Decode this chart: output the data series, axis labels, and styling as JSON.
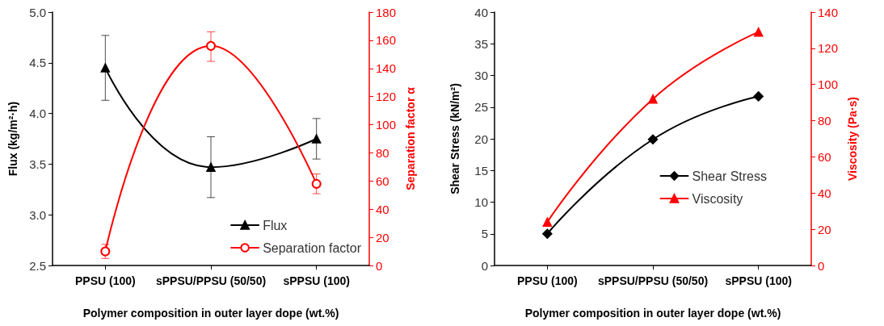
{
  "chart_data": [
    {
      "type": "line",
      "xlabel": "Polymer composition in outer layer dope (wt.%)",
      "ylabel": "Flux (kg/m²·h)",
      "y2label": "Separation factor α",
      "categories": [
        "PPSU (100)",
        "sPPSU/PPSU (50/50)",
        "sPPSU (100)"
      ],
      "series": [
        {
          "name": "Flux",
          "color": "#000000",
          "values": [
            4.45,
            3.47,
            3.75
          ],
          "errors": [
            [
              4.13,
              4.77
            ],
            [
              3.17,
              3.77
            ],
            [
              3.55,
              3.95
            ]
          ],
          "marker": "triangle"
        },
        {
          "name": "Separation factor",
          "color": "#ff0000",
          "axis": "y2",
          "values": [
            10,
            156,
            58
          ],
          "errors": [
            [
              5,
              15
            ],
            [
              145,
              166
            ],
            [
              51,
              65
            ]
          ],
          "marker": "circle"
        }
      ],
      "ylim": [
        2.5,
        5.0
      ],
      "yticks": [
        {
          "value": 2.5,
          "label": "2.5"
        },
        {
          "value": 3,
          "label": "3.0"
        },
        {
          "value": 3.5,
          "label": "3.5"
        },
        {
          "value": 4,
          "label": "4.0"
        },
        {
          "value": 4.5,
          "label": "4.5"
        },
        {
          "value": 5,
          "label": "5.0"
        }
      ],
      "y2lim": [
        0,
        180
      ],
      "y2ticks": [
        0,
        20,
        40,
        60,
        80,
        100,
        120,
        140,
        160,
        180
      ],
      "grid": false,
      "legend": "bottom right",
      "line_style": "solid"
    },
    {
      "type": "line",
      "xlabel": "Polymer composition in outer layer dope (wt.%)",
      "ylabel": "Shear Stress (kN/m²)",
      "y2label": "Viscosity (Pa·s)",
      "categories": [
        "PPSU (100)",
        "sPPSU/PPSU (50/50)",
        "sPPSU (100)"
      ],
      "series": [
        {
          "name": "Shear Stress",
          "color": "#000000",
          "values": [
            5,
            19.9,
            26.7
          ],
          "marker": "diamond"
        },
        {
          "name": "Viscosity",
          "color": "#ff0000",
          "axis": "y2",
          "values": [
            24,
            92,
            129
          ],
          "marker": "triangle"
        }
      ],
      "ylim": [
        0,
        40
      ],
      "yticks": [
        0,
        5,
        10,
        15,
        20,
        25,
        30,
        35,
        40
      ],
      "y2lim": [
        0,
        140
      ],
      "y2ticks": [
        0,
        20,
        40,
        60,
        80,
        100,
        120,
        140
      ],
      "grid": false,
      "legend": "right",
      "line_style": "solid"
    }
  ]
}
